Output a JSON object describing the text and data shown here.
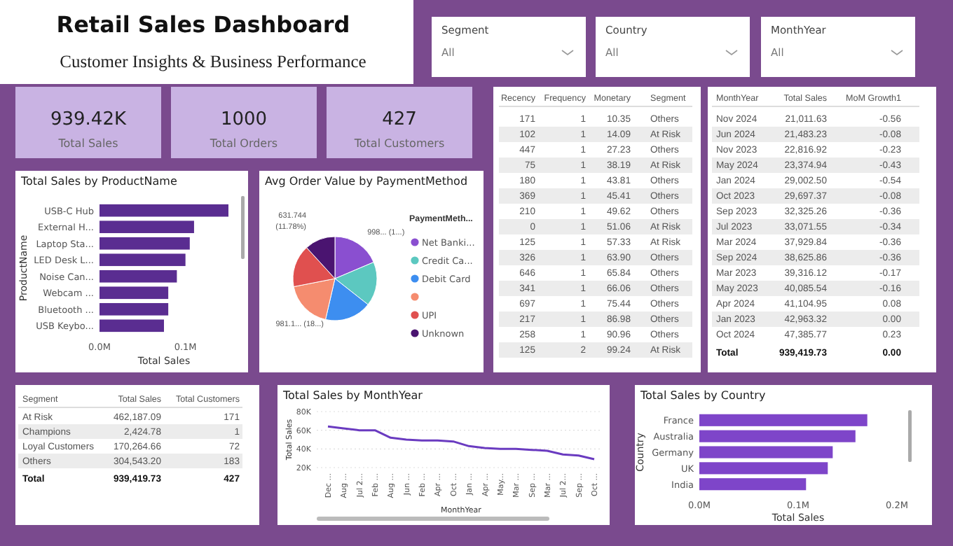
{
  "chart_data": [
    {
      "type": "other",
      "title": "Retail Sales Dashboard",
      "subtitle": "Customer Insights & Business Performance"
    },
    {
      "type": "other",
      "categories": [
        "Segment",
        "Country",
        "MonthYear"
      ],
      "value_labels": [
        "All",
        "All",
        "All"
      ]
    },
    {
      "type": "other",
      "categories": [
        "Total Sales",
        "Total Orders",
        "Total Customers"
      ],
      "value_labels": [
        "939.42K",
        "1000",
        "427"
      ]
    },
    {
      "type": "bar",
      "orientation": "horizontal",
      "title": "Total Sales by ProductName",
      "xlabel": "Total Sales",
      "ylabel": "ProductName",
      "categories": [
        "USB-C Hub",
        "External H...",
        "Laptop Sta...",
        "LED Desk L...",
        "Noise Can...",
        "Webcam ...",
        "Bluetooth ...",
        "USB Keybo..."
      ],
      "values": [
        0.15,
        0.11,
        0.105,
        0.1,
        0.09,
        0.08,
        0.08,
        0.075
      ],
      "color": "#5a2d91",
      "xlim": [
        0,
        0.15
      ],
      "xticks": [
        {
          "value": 0,
          "label": "0.0M"
        },
        {
          "value": 0.1,
          "label": "0.1M"
        }
      ],
      "grid": false
    },
    {
      "type": "pie",
      "title": "Avg Order Value by PaymentMethod",
      "legend_title": "PaymentMeth...",
      "categories": [
        "Net Banki...",
        "Credit Ca...",
        "Debit Card",
        null,
        "UPI",
        "Unknown"
      ],
      "values": [
        998,
        912,
        965,
        981.1,
        875,
        631.744
      ],
      "colors": [
        "#8a4fd0",
        "#5cc8c0",
        "#3d8ef0",
        "#f58c6f",
        "#e0504f",
        "#4a1470"
      ],
      "value_labels": [
        "998... (1...)",
        null,
        null,
        "981.1... (18...)",
        null,
        "631.744 (11.78%)"
      ],
      "legend": "right"
    },
    {
      "type": "other",
      "categories": [
        "Recency",
        "Frequency",
        "Monetary",
        "Segment"
      ],
      "cell_labels": [
        [
          "171",
          "1",
          "10.35",
          "Others"
        ],
        [
          "102",
          "1",
          "14.09",
          "At Risk"
        ],
        [
          "447",
          "1",
          "27.23",
          "Others"
        ],
        [
          "75",
          "1",
          "38.19",
          "At Risk"
        ],
        [
          "180",
          "1",
          "43.81",
          "Others"
        ],
        [
          "369",
          "1",
          "45.41",
          "Others"
        ],
        [
          "210",
          "1",
          "49.62",
          "Others"
        ],
        [
          "0",
          "1",
          "51.06",
          "At Risk"
        ],
        [
          "125",
          "1",
          "57.33",
          "At Risk"
        ],
        [
          "326",
          "1",
          "63.90",
          "Others"
        ],
        [
          "646",
          "1",
          "65.84",
          "Others"
        ],
        [
          "341",
          "1",
          "66.06",
          "Others"
        ],
        [
          "697",
          "1",
          "75.44",
          "Others"
        ],
        [
          "217",
          "1",
          "86.98",
          "Others"
        ],
        [
          "258",
          "1",
          "90.96",
          "Others"
        ],
        [
          "125",
          "2",
          "99.24",
          "At Risk"
        ]
      ]
    },
    {
      "type": "other",
      "categories": [
        "MonthYear",
        "Total Sales",
        "MoM Growth1"
      ],
      "cell_labels": [
        [
          "Nov 2024",
          "21,011.63",
          "-0.56"
        ],
        [
          "Jun 2024",
          "21,483.23",
          "-0.08"
        ],
        [
          "Nov 2023",
          "22,816.92",
          "-0.23"
        ],
        [
          "May 2024",
          "23,374.94",
          "-0.43"
        ],
        [
          "Jan 2024",
          "29,002.50",
          "-0.54"
        ],
        [
          "Oct 2023",
          "29,697.37",
          "-0.08"
        ],
        [
          "Sep 2023",
          "32,325.26",
          "-0.36"
        ],
        [
          "Jul 2023",
          "33,071.55",
          "-0.34"
        ],
        [
          "Mar 2024",
          "37,929.84",
          "-0.36"
        ],
        [
          "Sep 2024",
          "38,625.86",
          "-0.36"
        ],
        [
          "Mar 2023",
          "39,316.12",
          "-0.17"
        ],
        [
          "May 2023",
          "40,085.54",
          "-0.16"
        ],
        [
          "Apr 2024",
          "41,104.95",
          "0.08"
        ],
        [
          "Jan 2023",
          "42,963.32",
          "0.00"
        ],
        [
          "Oct 2024",
          "47,385.77",
          "0.23"
        ]
      ],
      "totals": [
        "Total",
        "939,419.73",
        "0.00"
      ]
    },
    {
      "type": "other",
      "categories": [
        "Segment",
        "Total Sales",
        "Total Customers"
      ],
      "cell_labels": [
        [
          "At Risk",
          "462,187.09",
          "171"
        ],
        [
          "Champions",
          "2,424.78",
          "1"
        ],
        [
          "Loyal Customers",
          "170,264.66",
          "72"
        ],
        [
          "Others",
          "304,543.20",
          "183"
        ]
      ],
      "totals": [
        "Total",
        "939,419.73",
        "427"
      ]
    },
    {
      "type": "line",
      "title": "Total Sales by MonthYear",
      "xlabel": "MonthYear",
      "ylabel": "Total Sales",
      "categories": [
        "Dec ...",
        "Aug ...",
        "Jul 2...",
        "Feb ...",
        "Aug ...",
        "Jun ...",
        "Feb ...",
        "Apr ...",
        "Oct ...",
        "Jan ...",
        "Apr ...",
        "May...",
        "Mar ...",
        "Sep ...",
        "Mar ...",
        "Jul 2...",
        "Sep ...",
        "Oct ..."
      ],
      "values": [
        64,
        62,
        60,
        60,
        52,
        50,
        49,
        49,
        48,
        43,
        41,
        40,
        40,
        39,
        38,
        34,
        33,
        29
      ],
      "color": "#6a3bc0",
      "ylim": [
        20,
        80
      ],
      "yticks": [
        {
          "value": 20,
          "label": "20K"
        },
        {
          "value": 40,
          "label": "40K"
        },
        {
          "value": 60,
          "label": "60K"
        },
        {
          "value": 80,
          "label": "80K"
        }
      ],
      "grid": "y",
      "marker": "none",
      "line_style": "solid"
    },
    {
      "type": "bar",
      "orientation": "horizontal",
      "title": "Total Sales by Country",
      "xlabel": "Total Sales",
      "ylabel": "Country",
      "categories": [
        "France",
        "Australia",
        "Germany",
        "UK",
        "India"
      ],
      "values": [
        0.17,
        0.158,
        0.135,
        0.13,
        0.108
      ],
      "color": "#7e45c9",
      "xlim": [
        0,
        0.2
      ],
      "xticks": [
        {
          "value": 0,
          "label": "0.0M"
        },
        {
          "value": 0.1,
          "label": "0.1M"
        },
        {
          "value": 0.2,
          "label": "0.2M"
        }
      ],
      "grid": false
    }
  ]
}
